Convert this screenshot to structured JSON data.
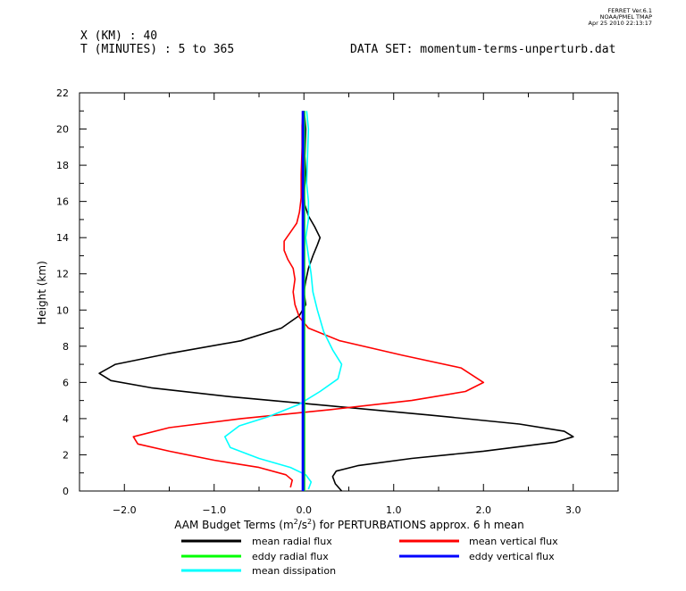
{
  "header": {
    "ferret_version": "FERRET  Ver.6.1",
    "ferret_org": "NOAA/PMEL TMAP",
    "ferret_date": "Apr 25 2010 22:13:17",
    "x_line": "X (KM) : 40",
    "t_line": "T (MINUTES) : 5 to 365",
    "dataset_line": "DATA SET: momentum-terms-unperturb.dat"
  },
  "chart_data": {
    "type": "line",
    "title": "",
    "xlabel_main": "AAM Budget Terms (m",
    "xlabel_sup1": "2",
    "xlabel_mid": "/s",
    "xlabel_sup2": "2",
    "xlabel_tail": ") for PERTURBATIONS approx. 6 h mean",
    "ylabel": "Height (km)",
    "xlim": [
      -2.5,
      3.5
    ],
    "ylim": [
      0,
      22
    ],
    "x_ticks": [
      -2.0,
      -1.0,
      0.0,
      1.0,
      2.0,
      3.0
    ],
    "x_tick_labels": [
      "−2.0",
      "−1.0",
      "0.0",
      "1.0",
      "2.0",
      "3.0"
    ],
    "y_ticks": [
      0,
      2,
      4,
      6,
      8,
      10,
      12,
      14,
      16,
      18,
      20,
      22
    ],
    "y_tick_labels": [
      "0",
      "2",
      "4",
      "6",
      "8",
      "10",
      "12",
      "14",
      "16",
      "18",
      "20",
      "22"
    ],
    "legend_position": "bottom",
    "series": [
      {
        "name": "mean radial flux",
        "color": "#000000",
        "points": [
          [
            0.42,
            0
          ],
          [
            0.35,
            0.4
          ],
          [
            0.32,
            0.8
          ],
          [
            0.36,
            1.1
          ],
          [
            0.6,
            1.4
          ],
          [
            1.2,
            1.8
          ],
          [
            2.0,
            2.2
          ],
          [
            2.8,
            2.7
          ],
          [
            3.0,
            3.0
          ],
          [
            2.9,
            3.3
          ],
          [
            2.4,
            3.7
          ],
          [
            1.4,
            4.2
          ],
          [
            0.3,
            4.7
          ],
          [
            -0.8,
            5.2
          ],
          [
            -1.7,
            5.7
          ],
          [
            -2.15,
            6.1
          ],
          [
            -2.28,
            6.5
          ],
          [
            -2.1,
            7.0
          ],
          [
            -1.5,
            7.6
          ],
          [
            -0.7,
            8.3
          ],
          [
            -0.25,
            9.0
          ],
          [
            -0.05,
            9.7
          ],
          [
            0.02,
            10.3
          ],
          [
            0.0,
            11.0
          ],
          [
            0.02,
            11.6
          ],
          [
            0.05,
            12.3
          ],
          [
            0.1,
            13.0
          ],
          [
            0.15,
            13.6
          ],
          [
            0.18,
            14.0
          ],
          [
            0.12,
            14.6
          ],
          [
            0.05,
            15.2
          ],
          [
            0.01,
            15.8
          ],
          [
            0.0,
            16.4
          ],
          [
            0.02,
            17.5
          ],
          [
            0.01,
            18.5
          ],
          [
            0.02,
            20.0
          ],
          [
            0.01,
            20.6
          ],
          [
            0.0,
            21.0
          ]
        ]
      },
      {
        "name": "mean vertical flux",
        "color": "#ff0000",
        "points": [
          [
            -0.15,
            0.2
          ],
          [
            -0.13,
            0.6
          ],
          [
            -0.2,
            0.9
          ],
          [
            -0.5,
            1.3
          ],
          [
            -1.0,
            1.7
          ],
          [
            -1.5,
            2.2
          ],
          [
            -1.85,
            2.6
          ],
          [
            -1.9,
            3.0
          ],
          [
            -1.5,
            3.5
          ],
          [
            -0.7,
            4.0
          ],
          [
            0.3,
            4.5
          ],
          [
            1.2,
            5.0
          ],
          [
            1.8,
            5.5
          ],
          [
            2.0,
            6.0
          ],
          [
            1.75,
            6.8
          ],
          [
            1.1,
            7.5
          ],
          [
            0.4,
            8.3
          ],
          [
            0.05,
            9.0
          ],
          [
            -0.05,
            9.6
          ],
          [
            -0.1,
            10.3
          ],
          [
            -0.12,
            11.0
          ],
          [
            -0.1,
            11.7
          ],
          [
            -0.12,
            12.3
          ],
          [
            -0.18,
            12.8
          ],
          [
            -0.22,
            13.3
          ],
          [
            -0.22,
            13.8
          ],
          [
            -0.15,
            14.3
          ],
          [
            -0.08,
            14.8
          ],
          [
            -0.05,
            15.4
          ],
          [
            -0.03,
            16.2
          ],
          [
            -0.03,
            17.5
          ],
          [
            -0.02,
            19.0
          ],
          [
            -0.02,
            20.2
          ],
          [
            -0.01,
            21.0
          ]
        ]
      },
      {
        "name": "eddy radial flux",
        "color": "#00ff00",
        "points": [
          [
            0.0,
            0
          ],
          [
            0.0,
            21.0
          ]
        ]
      },
      {
        "name": "eddy vertical flux",
        "color": "#0000ff",
        "points": [
          [
            -0.01,
            0
          ],
          [
            -0.01,
            21.0
          ]
        ]
      },
      {
        "name": "mean dissipation",
        "color": "#00ffff",
        "points": [
          [
            0.05,
            0.1
          ],
          [
            0.08,
            0.5
          ],
          [
            0.02,
            0.9
          ],
          [
            -0.15,
            1.3
          ],
          [
            -0.5,
            1.8
          ],
          [
            -0.82,
            2.4
          ],
          [
            -0.88,
            3.0
          ],
          [
            -0.72,
            3.6
          ],
          [
            -0.4,
            4.1
          ],
          [
            -0.05,
            4.8
          ],
          [
            0.18,
            5.5
          ],
          [
            0.38,
            6.2
          ],
          [
            0.42,
            7.0
          ],
          [
            0.32,
            7.8
          ],
          [
            0.22,
            8.8
          ],
          [
            0.15,
            10.0
          ],
          [
            0.1,
            11.0
          ],
          [
            0.08,
            12.0
          ],
          [
            0.05,
            13.0
          ],
          [
            0.02,
            14.0
          ],
          [
            0.05,
            15.0
          ],
          [
            0.05,
            16.0
          ],
          [
            0.03,
            17.0
          ],
          [
            0.04,
            18.5
          ],
          [
            0.05,
            20.0
          ],
          [
            0.03,
            21.0
          ]
        ]
      }
    ]
  },
  "legend": {
    "left": [
      {
        "label": "mean radial flux",
        "color": "#000000"
      },
      {
        "label": "eddy radial flux",
        "color": "#00ff00"
      },
      {
        "label": "mean dissipation",
        "color": "#00ffff"
      }
    ],
    "right": [
      {
        "label": "mean vertical flux",
        "color": "#ff0000"
      },
      {
        "label": "eddy vertical flux",
        "color": "#0000ff"
      }
    ]
  }
}
